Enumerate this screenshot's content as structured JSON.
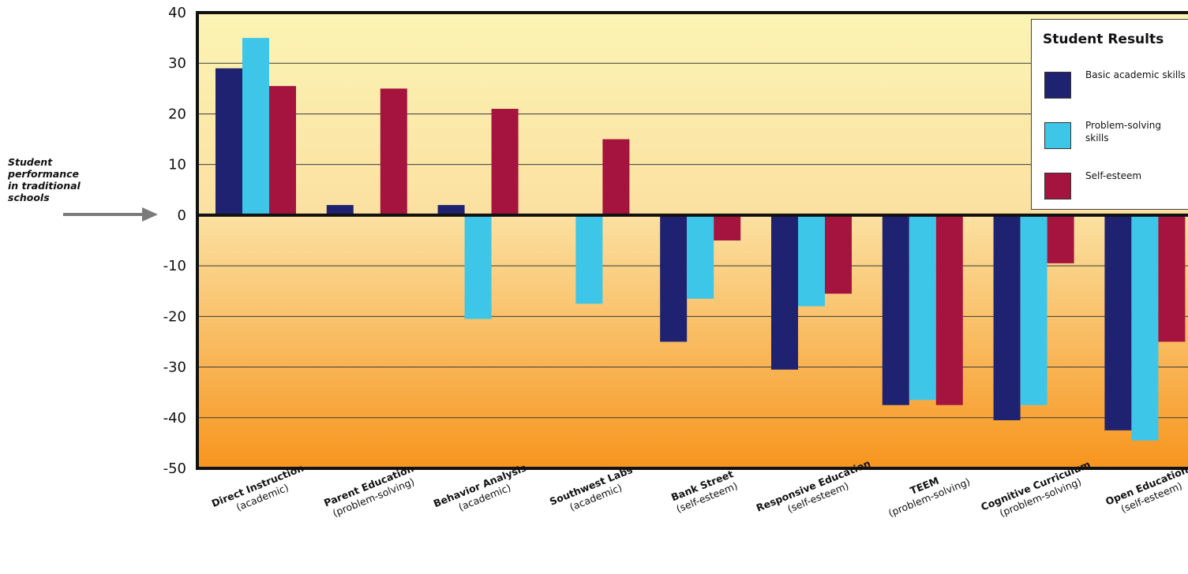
{
  "chart_data": {
    "type": "bar",
    "annotation": [
      "Student",
      "performance",
      "in traditional",
      "schools"
    ],
    "categories": [
      {
        "name": "Direct Instruction",
        "sub": "(academic)"
      },
      {
        "name": "Parent Education",
        "sub": "(problem-solving)"
      },
      {
        "name": "Behavior Analysis",
        "sub": "(academic)"
      },
      {
        "name": "Southwest Labs",
        "sub": "(academic)"
      },
      {
        "name": "Bank Street",
        "sub": "(self-esteem)"
      },
      {
        "name": "Responsive Education",
        "sub": "(self-esteem)"
      },
      {
        "name": "TEEM",
        "sub": "(problem-solving)"
      },
      {
        "name": "Cognitive Curriculum",
        "sub": "(problem-solving)"
      },
      {
        "name": "Open Education",
        "sub": "(self-esteem)"
      }
    ],
    "series": [
      {
        "name": "Basic academic skills",
        "color": "#1f2270",
        "values": [
          29,
          2,
          2,
          0,
          -25,
          -30.5,
          -37.5,
          -40.5,
          -42.5
        ]
      },
      {
        "name": "Problem-solving skills",
        "color": "#3ec6e8",
        "values": [
          35,
          0,
          -20.5,
          -17.5,
          -16.5,
          -18,
          -36.5,
          -37.5,
          -44.5
        ]
      },
      {
        "name": "Self-esteem",
        "color": "#a4143e",
        "values": [
          25.5,
          25,
          21,
          15,
          -5,
          -15.5,
          -37.5,
          -9.5,
          -25
        ]
      }
    ],
    "ylim": [
      -50,
      40
    ],
    "yticks": [
      40,
      30,
      20,
      10,
      0,
      -10,
      -20,
      -30,
      -40,
      -50
    ],
    "legend": {
      "title": "Student Results",
      "position": "top-right"
    },
    "grid": true,
    "background_gradient": [
      "#fbf4b4",
      "#f7951e"
    ]
  }
}
